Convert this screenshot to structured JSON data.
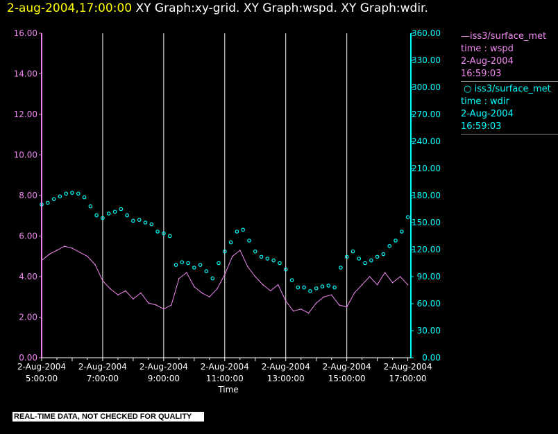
{
  "header": {
    "time": "2-aug-2004,17:00:00",
    "title": " XY Graph:xy-grid.  XY Graph:wspd.  XY Graph:wdir."
  },
  "notice": "REAL-TIME DATA, NOT CHECKED FOR QUALITY",
  "legend": [
    {
      "symbol": "line",
      "name": "iss3/surface_met",
      "var": "time : wspd",
      "date": "2-Aug-2004",
      "time": "16:59:03"
    },
    {
      "symbol": "circle",
      "name": "iss3/surface_met",
      "var": "time : wdir",
      "date": "2-Aug-2004",
      "time": "16:59:03"
    }
  ],
  "colors": {
    "wspd": "#ee88ee",
    "wdir": "#00ffff",
    "title_time": "#ffff00",
    "text": "#ffffff"
  },
  "chart_data": {
    "type": "line",
    "xlabel": "Time",
    "x_ticks": [
      {
        "date": "2-Aug-2004",
        "time": "5:00:00",
        "hour": 5
      },
      {
        "date": "2-Aug-2004",
        "time": "7:00:00",
        "hour": 7
      },
      {
        "date": "2-Aug-2004",
        "time": "9:00:00",
        "hour": 9
      },
      {
        "date": "2-Aug-2004",
        "time": "11:00:00",
        "hour": 11
      },
      {
        "date": "2-Aug-2004",
        "time": "13:00:00",
        "hour": 13
      },
      {
        "date": "2-Aug-2004",
        "time": "15:00:00",
        "hour": 15
      },
      {
        "date": "2-Aug-2004",
        "time": "17:00:00",
        "hour": 17
      }
    ],
    "xlim": [
      5,
      17.1
    ],
    "y_left": {
      "ticks": [
        "0.00",
        "2.00",
        "4.00",
        "6.00",
        "8.00",
        "10.00",
        "12.00",
        "14.00",
        "16.00"
      ],
      "range": [
        0,
        16
      ]
    },
    "y_right": {
      "ticks": [
        "0.00",
        "30.00",
        "60.00",
        "90.00",
        "120.00",
        "150.00",
        "180.00",
        "210.00",
        "240.00",
        "270.00",
        "300.00",
        "330.00",
        "360.00"
      ],
      "range": [
        0,
        360
      ]
    },
    "grid": "vertical",
    "series": [
      {
        "name": "wspd",
        "axis": "left",
        "style": "line",
        "x": [
          5.0,
          5.25,
          5.5,
          5.75,
          6.0,
          6.25,
          6.5,
          6.75,
          7.0,
          7.25,
          7.5,
          7.75,
          8.0,
          8.25,
          8.5,
          8.75,
          9.0,
          9.25,
          9.5,
          9.75,
          10.0,
          10.25,
          10.5,
          10.75,
          11.0,
          11.25,
          11.5,
          11.75,
          12.0,
          12.25,
          12.5,
          12.75,
          13.0,
          13.25,
          13.5,
          13.75,
          14.0,
          14.25,
          14.5,
          14.75,
          15.0,
          15.25,
          15.5,
          15.75,
          16.0,
          16.25,
          16.5,
          16.75,
          17.0
        ],
        "y": [
          4.8,
          5.1,
          5.3,
          5.5,
          5.4,
          5.2,
          5.0,
          4.6,
          3.8,
          3.4,
          3.1,
          3.3,
          2.9,
          3.2,
          2.7,
          2.6,
          2.4,
          2.6,
          3.9,
          4.2,
          3.5,
          3.2,
          3.0,
          3.4,
          4.1,
          5.0,
          5.3,
          4.5,
          4.0,
          3.6,
          3.3,
          3.6,
          2.8,
          2.3,
          2.4,
          2.2,
          2.7,
          3.0,
          3.1,
          2.6,
          2.5,
          3.2,
          3.6,
          4.0,
          3.6,
          4.2,
          3.7,
          4.0,
          3.6
        ]
      },
      {
        "name": "wdir",
        "axis": "right",
        "style": "circle",
        "x": [
          5.0,
          5.2,
          5.4,
          5.6,
          5.8,
          6.0,
          6.2,
          6.4,
          6.6,
          6.8,
          7.0,
          7.2,
          7.4,
          7.6,
          7.8,
          8.0,
          8.2,
          8.4,
          8.6,
          8.8,
          9.0,
          9.2,
          9.4,
          9.6,
          9.8,
          10.0,
          10.2,
          10.4,
          10.6,
          10.8,
          11.0,
          11.2,
          11.4,
          11.6,
          11.8,
          12.0,
          12.2,
          12.4,
          12.6,
          12.8,
          13.0,
          13.2,
          13.4,
          13.6,
          13.8,
          14.0,
          14.2,
          14.4,
          14.6,
          14.8,
          15.0,
          15.2,
          15.4,
          15.6,
          15.8,
          16.0,
          16.2,
          16.4,
          16.6,
          16.8,
          17.0
        ],
        "y": [
          170,
          172,
          176,
          179,
          182,
          183,
          182,
          178,
          168,
          158,
          155,
          160,
          162,
          165,
          158,
          152,
          153,
          150,
          148,
          140,
          138,
          135,
          103,
          106,
          105,
          100,
          103,
          96,
          88,
          105,
          118,
          128,
          140,
          142,
          130,
          118,
          112,
          110,
          108,
          105,
          98,
          86,
          78,
          78,
          74,
          77,
          79,
          80,
          78,
          100,
          112,
          118,
          110,
          105,
          108,
          112,
          115,
          124,
          130,
          140,
          156
        ]
      }
    ]
  }
}
